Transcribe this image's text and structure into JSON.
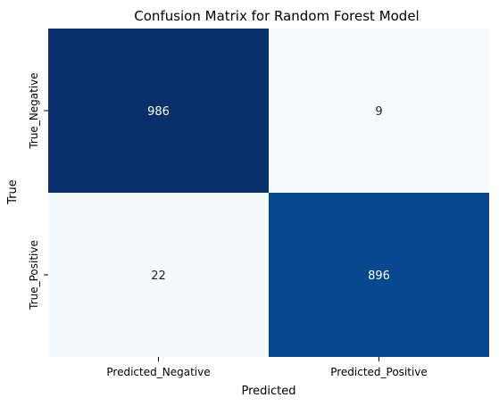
{
  "chart_data": {
    "type": "heatmap",
    "title": "Confusion Matrix for Random Forest Model",
    "xlabel": "Predicted",
    "ylabel": "True",
    "x_categories": [
      "Predicted_Negative",
      "Predicted_Positive"
    ],
    "y_categories": [
      "True_Negative",
      "True_Positive"
    ],
    "values": [
      [
        986,
        9
      ],
      [
        22,
        896
      ]
    ],
    "colormap": "Blues",
    "colorbar": false,
    "grid": false,
    "legend": "none",
    "colors": {
      "low": "#f7fbff",
      "high": "#08306b",
      "text_on_dark": "#ffffff",
      "text_on_light": "#262626"
    }
  }
}
